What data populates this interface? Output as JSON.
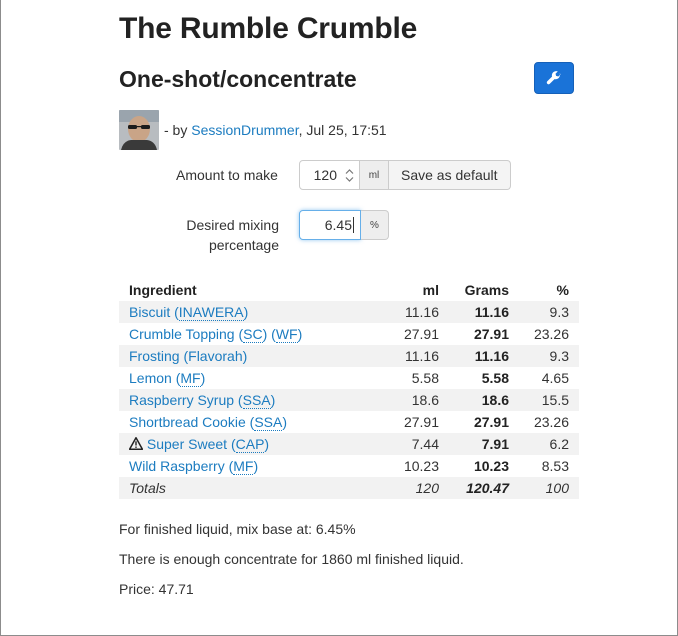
{
  "recipe": {
    "title": "The Rumble Crumble",
    "subtitle": "One-shot/concentrate"
  },
  "toolbar": {
    "settings_icon": "wrench-icon",
    "accent_color": "#1a73d8"
  },
  "author": {
    "prefix": "- by",
    "name": "SessionDrummer",
    "date": ", Jul 25, 17:51"
  },
  "form": {
    "amount_label": "Amount to make",
    "amount_value": "120",
    "amount_unit": "ml",
    "save_default_label": "Save as default",
    "mixing_label_line1": "Desired mixing",
    "mixing_label_line2": "percentage",
    "mixing_value": "6.45",
    "mixing_unit": "%"
  },
  "table": {
    "headers": {
      "ingredient": "Ingredient",
      "ml": "ml",
      "grams": "Grams",
      "percent": "%"
    },
    "rows": [
      {
        "name": "Biscuit",
        "vendors": [
          "INAWERA"
        ],
        "ml": "11.16",
        "grams": "11.16",
        "percent": "9.3",
        "warning": false
      },
      {
        "name": "Crumble Topping",
        "vendors": [
          "SC",
          "WF"
        ],
        "ml": "27.91",
        "grams": "27.91",
        "percent": "23.26",
        "warning": false
      },
      {
        "name": "Frosting",
        "vendors_plain": "Flavorah",
        "ml": "11.16",
        "grams": "11.16",
        "percent": "9.3",
        "warning": false
      },
      {
        "name": "Lemon",
        "vendors": [
          "MF"
        ],
        "ml": "5.58",
        "grams": "5.58",
        "percent": "4.65",
        "warning": false
      },
      {
        "name": "Raspberry Syrup",
        "vendors": [
          "SSA"
        ],
        "ml": "18.6",
        "grams": "18.6",
        "percent": "15.5",
        "warning": false
      },
      {
        "name": "Shortbread Cookie",
        "vendors": [
          "SSA"
        ],
        "ml": "27.91",
        "grams": "27.91",
        "percent": "23.26",
        "warning": false
      },
      {
        "name": "Super Sweet",
        "vendors": [
          "CAP"
        ],
        "ml": "7.44",
        "grams": "7.91",
        "percent": "6.2",
        "warning": true
      },
      {
        "name": "Wild Raspberry",
        "vendors": [
          "MF"
        ],
        "ml": "10.23",
        "grams": "10.23",
        "percent": "8.53",
        "warning": false
      }
    ],
    "totals": {
      "label": "Totals",
      "ml": "120",
      "grams": "120.47",
      "percent": "100"
    }
  },
  "notes": {
    "mix_base": "For finished liquid, mix base at: 6.45%",
    "enough": "There is enough concentrate for 1860 ml finished liquid.",
    "price": "Price: 47.71"
  }
}
